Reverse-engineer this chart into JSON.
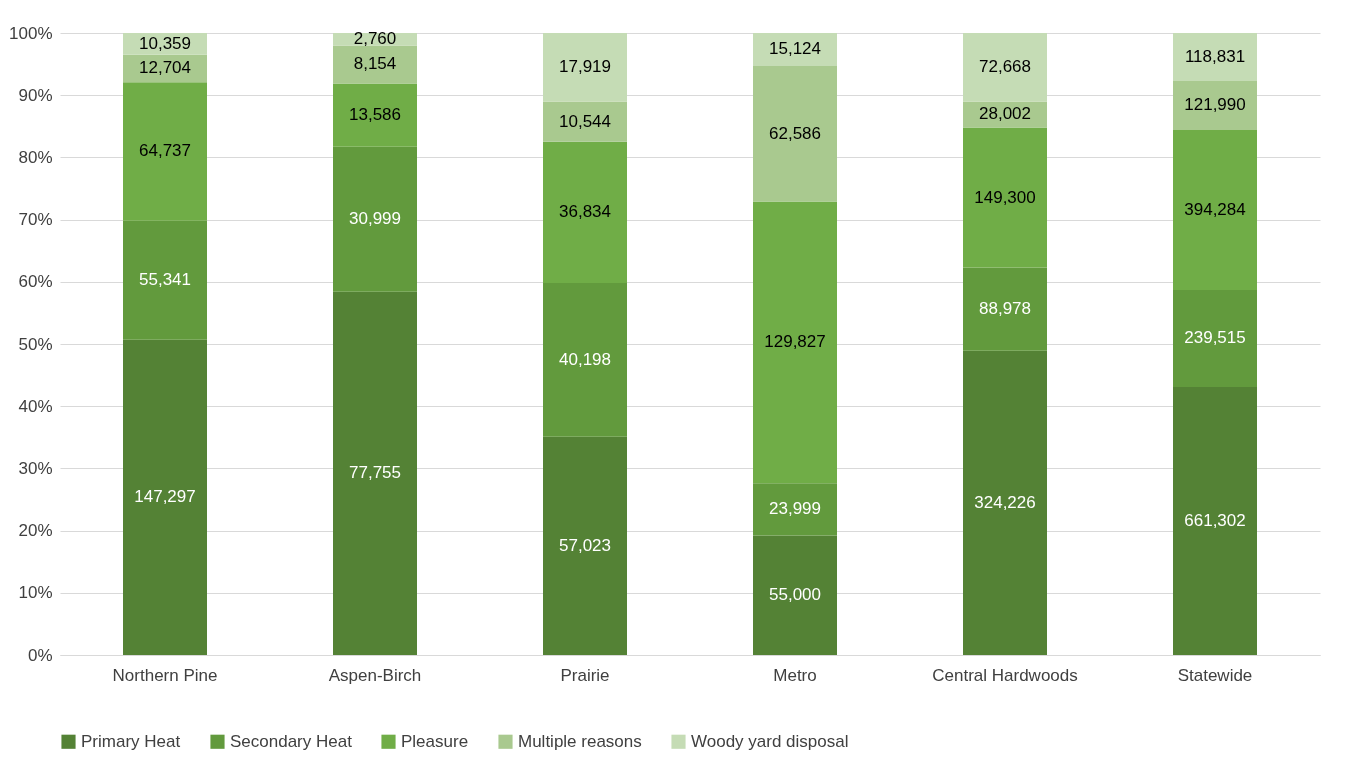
{
  "chart_data": {
    "type": "bar",
    "stacked": true,
    "categories": [
      "Northern Pine",
      "Aspen-Birch",
      "Prairie",
      "Metro",
      "Central Hardwoods",
      "Statewide"
    ],
    "series": [
      {
        "name": "Primary Heat",
        "color": "#548235",
        "values": [
          50.7,
          58.4,
          35.1,
          19.2,
          48.9,
          43.1
        ]
      },
      {
        "name": "Secondary Heat",
        "color": "#629a3d",
        "values": [
          19.1,
          23.3,
          24.7,
          8.4,
          13.4,
          15.6
        ]
      },
      {
        "name": "Pleasure",
        "color": "#70ad47",
        "values": [
          22.3,
          10.2,
          22.7,
          45.3,
          22.5,
          25.7
        ]
      },
      {
        "name": "Multiple reasons",
        "color": "#a9c98f",
        "values": [
          4.4,
          6.1,
          6.5,
          21.8,
          4.2,
          7.9
        ]
      },
      {
        "name": "Woody yard disposal",
        "color": "#c5dcb5",
        "values": [
          3.5,
          2.0,
          11.0,
          5.3,
          11.0,
          7.7
        ]
      }
    ],
    "annotations": [
      "147,297",
      "55,341",
      "64,737",
      "12,704",
      "10,359",
      "77,755",
      "30,999",
      "13,586",
      "8,154",
      "2,760",
      "57,023",
      "40,198",
      "36,834",
      "10,544",
      "17,919",
      "55,000",
      "23,999",
      "129,827",
      "62,586",
      "15,124",
      "324,226",
      "88,978",
      "149,300",
      "28,002",
      "72,668",
      "661,302",
      "239,515",
      "394,284",
      "121,990",
      "118,831"
    ],
    "ylim": [
      0,
      100
    ],
    "yticks": [
      {
        "value": 0,
        "label": "0%"
      },
      {
        "value": 10,
        "label": "10%"
      },
      {
        "value": 20,
        "label": "20%"
      },
      {
        "value": 30,
        "label": "30%"
      },
      {
        "value": 40,
        "label": "40%"
      },
      {
        "value": 50,
        "label": "50%"
      },
      {
        "value": 60,
        "label": "60%"
      },
      {
        "value": 70,
        "label": "70%"
      },
      {
        "value": 80,
        "label": "80%"
      },
      {
        "value": 90,
        "label": "90%"
      },
      {
        "value": 100,
        "label": "100%"
      }
    ],
    "grid": "y",
    "legend": "bottom"
  }
}
